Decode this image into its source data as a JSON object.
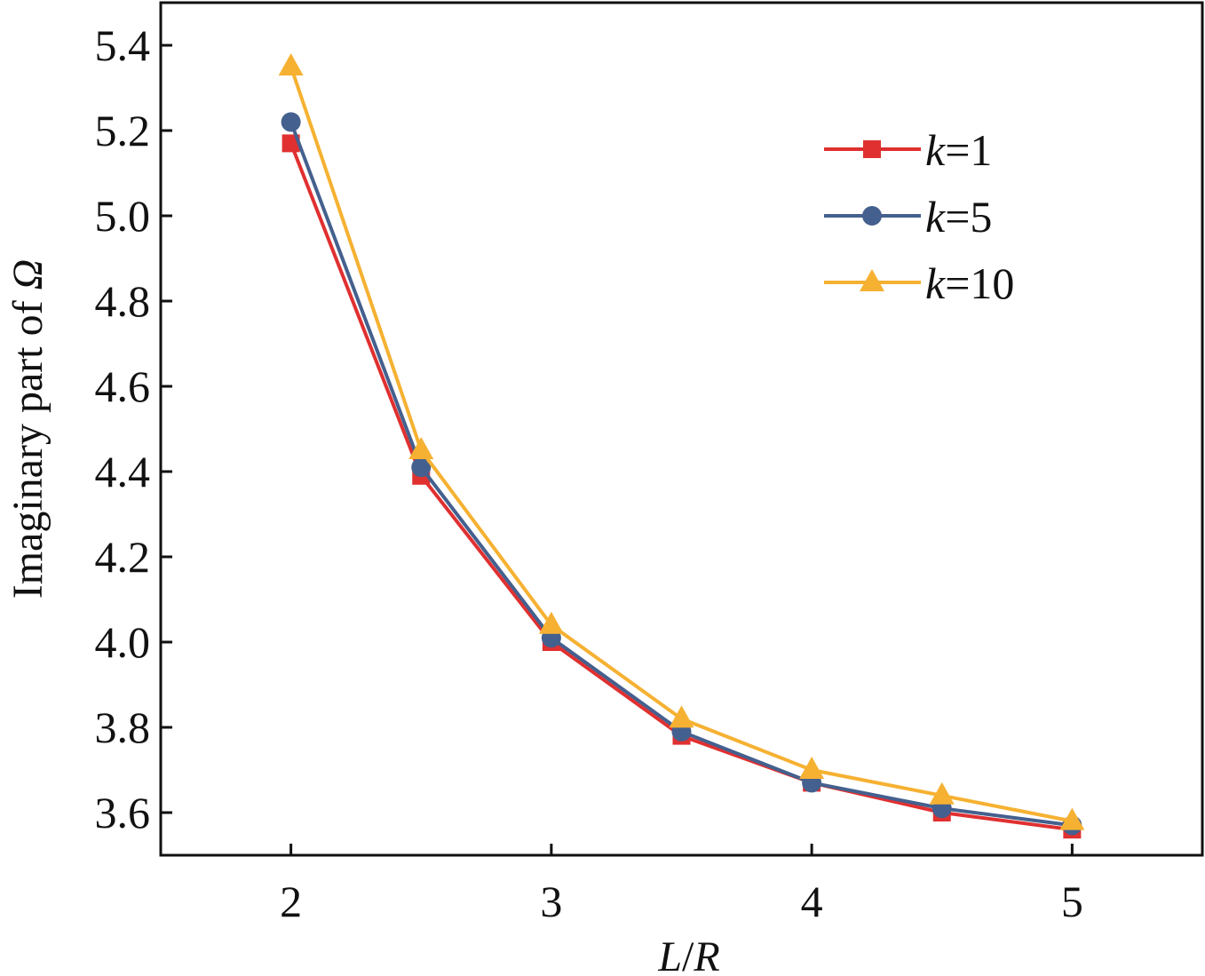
{
  "chart_data": {
    "type": "line",
    "x": [
      2,
      2.5,
      3,
      3.5,
      4,
      4.5,
      5
    ],
    "series": [
      {
        "name": "k=1",
        "name_var": "k",
        "name_rest": "=1",
        "color": "#e03030",
        "marker": "square",
        "values": [
          5.17,
          4.39,
          4.0,
          3.78,
          3.67,
          3.6,
          3.56
        ]
      },
      {
        "name": "k=5",
        "name_var": "k",
        "name_rest": "=5",
        "color": "#44608e",
        "marker": "circle",
        "values": [
          5.22,
          4.41,
          4.01,
          3.79,
          3.67,
          3.61,
          3.57
        ]
      },
      {
        "name": "k=10",
        "name_var": "k",
        "name_rest": "=10",
        "color": "#f6b132",
        "marker": "triangle",
        "values": [
          5.35,
          4.45,
          4.04,
          3.82,
          3.7,
          3.64,
          3.58
        ]
      }
    ],
    "xlim": [
      1.5,
      5.5
    ],
    "ylim": [
      3.5,
      5.5
    ],
    "xticks": [
      2,
      3,
      4,
      5
    ],
    "xtick_labels": [
      "2",
      "3",
      "4",
      "5"
    ],
    "yticks": [
      3.6,
      3.8,
      4.0,
      4.2,
      4.4,
      4.6,
      4.8,
      5.0,
      5.2,
      5.4
    ],
    "ytick_labels": [
      "3.6",
      "3.8",
      "4.0",
      "4.2",
      "4.4",
      "4.6",
      "4.8",
      "5.0",
      "5.2",
      "5.4"
    ],
    "xlabel": {
      "var1": "L",
      "sep": "/",
      "var2": "R"
    },
    "ylabel": {
      "text": "Imaginary part of ",
      "symbol": "Ω"
    },
    "grid": false,
    "legend_position": "top-right"
  }
}
